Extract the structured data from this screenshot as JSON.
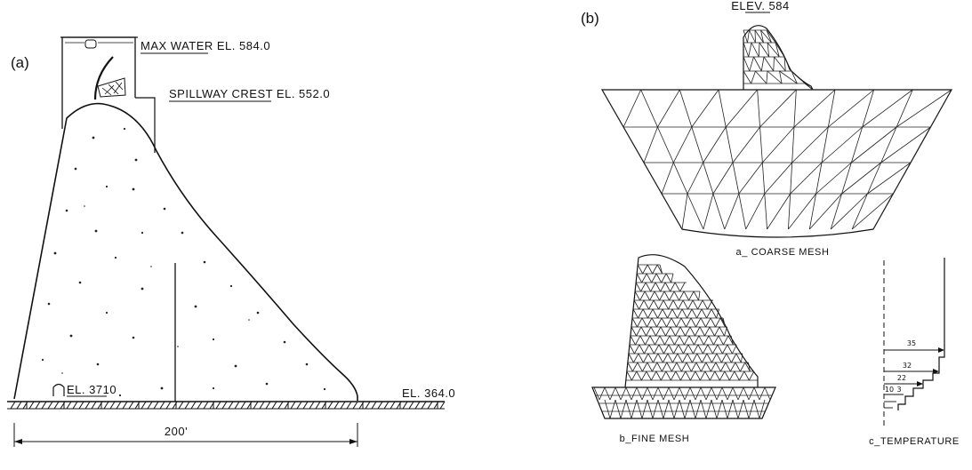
{
  "panel_a": {
    "label": "(a)",
    "max_water": "MAX WATER EL. 584.0",
    "spillway": "SPILLWAY CREST EL. 552.0",
    "gallery": "EL. 3710",
    "foundation": "EL. 364.0",
    "dimension": "200'"
  },
  "panel_b": {
    "label": "(b)",
    "elev": "ELEV. 584",
    "coarse_caption": "a_ COARSE MESH",
    "fine_caption": "b_FINE MESH",
    "temp_caption": "c_TEMPERATURE",
    "temps": [
      "35",
      "32",
      "22",
      "10",
      "3"
    ]
  }
}
